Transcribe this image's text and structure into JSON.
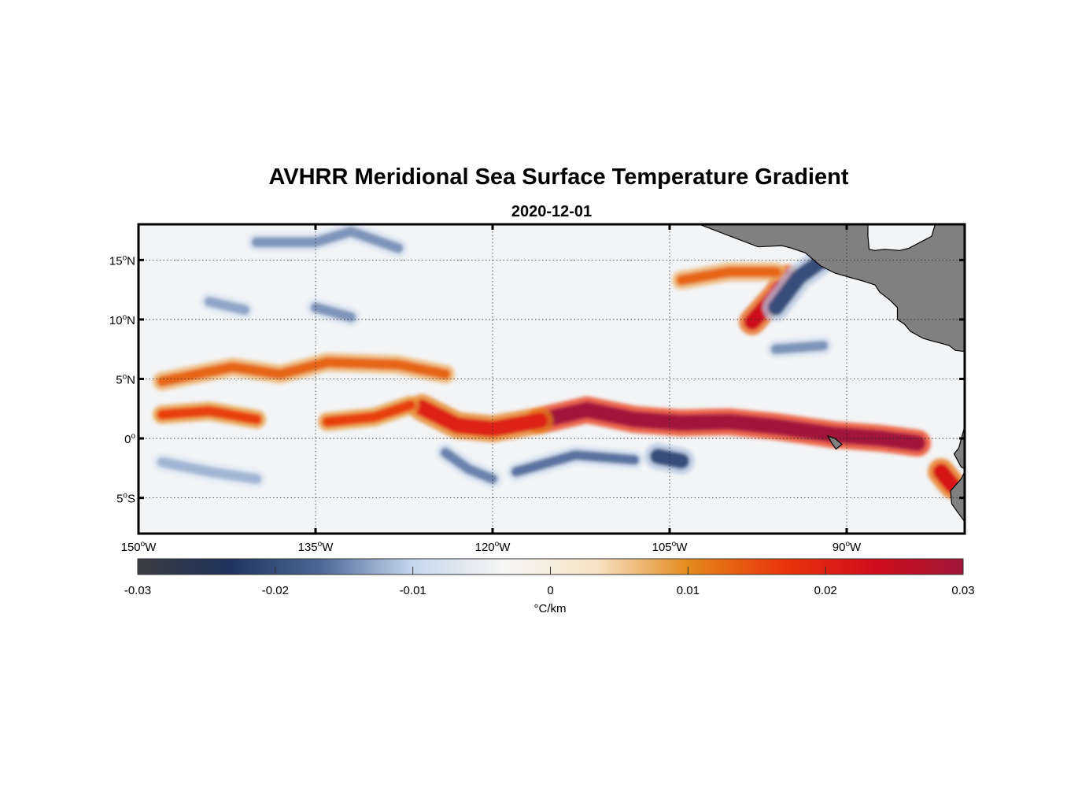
{
  "title": "AVHRR Meridional Sea Surface Temperature Gradient",
  "subtitle": "2020-12-01",
  "map": {
    "lon_range": [
      -150,
      -80
    ],
    "lat_range": [
      -8,
      18
    ],
    "lat_ticks": [
      {
        "value": 15,
        "deg": "15",
        "hem": "N"
      },
      {
        "value": 10,
        "deg": "10",
        "hem": "N"
      },
      {
        "value": 5,
        "deg": "5",
        "hem": "N"
      },
      {
        "value": 0,
        "deg": "0",
        "hem": ""
      },
      {
        "value": -5,
        "deg": "5",
        "hem": "S"
      }
    ],
    "lon_ticks": [
      {
        "value": -150,
        "deg": "150",
        "hem": "W"
      },
      {
        "value": -135,
        "deg": "135",
        "hem": "W"
      },
      {
        "value": -120,
        "deg": "120",
        "hem": "W"
      },
      {
        "value": -105,
        "deg": "105",
        "hem": "W"
      },
      {
        "value": -90,
        "deg": "90",
        "hem": "W"
      }
    ],
    "grid": true,
    "land_color": "#808080",
    "background": "#f3f4f6"
  },
  "colorbar": {
    "label": "°C/km",
    "range": [
      -0.03,
      0.03
    ],
    "ticks": [
      "-0.03",
      "-0.02",
      "-0.01",
      "0",
      "0.01",
      "0.02",
      "0.03"
    ],
    "colors": [
      "#3a3d42",
      "#1f335c",
      "#4f6797",
      "#c6d8ee",
      "#f6f6f4",
      "#f7e3c6",
      "#e48a1c",
      "#e8380a",
      "#d10e1a",
      "#a0163a"
    ]
  },
  "chart_data": {
    "type": "heatmap",
    "title": "AVHRR Meridional Sea Surface Temperature Gradient",
    "subtitle": "2020-12-01",
    "x_range": [
      -150,
      -80
    ],
    "y_range": [
      -8,
      18
    ],
    "value_range": [
      -0.03,
      0.03
    ],
    "unit": "°C/km",
    "features": [
      {
        "kind": "positive_band",
        "points": [
          [
            -116,
            1.5
          ],
          [
            -112,
            2.4
          ],
          [
            -108,
            1.6
          ],
          [
            -104,
            1.3
          ],
          [
            -100,
            1.4
          ],
          [
            -96,
            1.0
          ],
          [
            -91,
            0.3
          ],
          [
            -87,
            0.0
          ],
          [
            -84,
            -0.4
          ]
        ],
        "value": 0.03
      },
      {
        "kind": "positive_band",
        "points": [
          [
            -126,
            2.6
          ],
          [
            -123,
            1.1
          ],
          [
            -120,
            0.8
          ],
          [
            -116,
            1.5
          ]
        ],
        "value": 0.02
      },
      {
        "kind": "positive_band",
        "points": [
          [
            -148,
            4.8
          ],
          [
            -142,
            6.0
          ],
          [
            -138,
            5.4
          ],
          [
            -134,
            6.4
          ],
          [
            -128,
            6.2
          ],
          [
            -124,
            5.4
          ]
        ],
        "value": 0.013
      },
      {
        "kind": "positive_band",
        "points": [
          [
            -148,
            2.0
          ],
          [
            -144,
            2.3
          ],
          [
            -140,
            1.6
          ]
        ],
        "value": 0.016
      },
      {
        "kind": "positive_band",
        "points": [
          [
            -134,
            1.4
          ],
          [
            -130,
            1.8
          ],
          [
            -127,
            2.8
          ]
        ],
        "value": 0.016
      },
      {
        "kind": "positive_band",
        "points": [
          [
            -98,
            9.8
          ],
          [
            -96,
            12.0
          ],
          [
            -95,
            13.5
          ]
        ],
        "value": 0.024
      },
      {
        "kind": "positive_band",
        "points": [
          [
            -104,
            13.3
          ],
          [
            -100,
            14.0
          ],
          [
            -96,
            14.0
          ]
        ],
        "value": 0.013
      },
      {
        "kind": "positive_band",
        "points": [
          [
            -82,
            -2.8
          ],
          [
            -81,
            -4.0
          ]
        ],
        "value": 0.022
      },
      {
        "kind": "negative_band",
        "points": [
          [
            -140,
            16.5
          ],
          [
            -135,
            16.5
          ],
          [
            -132,
            17.4
          ],
          [
            -128,
            16.0
          ]
        ],
        "value": -0.014
      },
      {
        "kind": "negative_band",
        "points": [
          [
            -144,
            11.5
          ],
          [
            -141,
            10.8
          ]
        ],
        "value": -0.013
      },
      {
        "kind": "negative_band",
        "points": [
          [
            -135,
            11.0
          ],
          [
            -132,
            10.2
          ]
        ],
        "value": -0.014
      },
      {
        "kind": "negative_band",
        "points": [
          [
            -148,
            -2.0
          ],
          [
            -144,
            -2.8
          ],
          [
            -140,
            -3.4
          ]
        ],
        "value": -0.012
      },
      {
        "kind": "negative_band",
        "points": [
          [
            -124,
            -1.2
          ],
          [
            -122,
            -2.6
          ],
          [
            -120,
            -3.4
          ]
        ],
        "value": -0.015
      },
      {
        "kind": "negative_band",
        "points": [
          [
            -118,
            -2.8
          ],
          [
            -113,
            -1.4
          ],
          [
            -108,
            -1.8
          ]
        ],
        "value": -0.016
      },
      {
        "kind": "negative_band",
        "points": [
          [
            -106,
            -1.5
          ],
          [
            -104,
            -1.9
          ]
        ],
        "value": -0.02
      },
      {
        "kind": "negative_band",
        "points": [
          [
            -96,
            7.5
          ],
          [
            -92,
            7.8
          ]
        ],
        "value": -0.014
      },
      {
        "kind": "negative_band",
        "points": [
          [
            -96,
            11.0
          ],
          [
            -94,
            13.6
          ],
          [
            -92,
            15.0
          ]
        ],
        "value": -0.02
      }
    ]
  }
}
